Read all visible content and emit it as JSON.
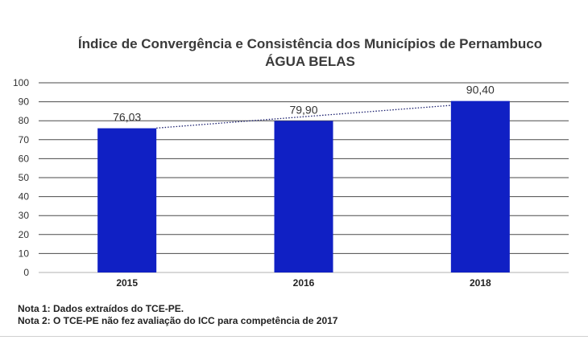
{
  "chart_data": {
    "type": "bar",
    "title": "Índice de Convergência e Consistência dos Municípios de Pernambuco",
    "subtitle": "ÁGUA BELAS",
    "categories": [
      "2015",
      "2016",
      "2018"
    ],
    "values": [
      76.03,
      79.9,
      90.4
    ],
    "data_labels": [
      "76,03",
      "79,90",
      "90,40"
    ],
    "ylim": [
      0,
      100
    ],
    "y_ticks": [
      "0",
      "10",
      "20",
      "30",
      "40",
      "50",
      "60",
      "70",
      "80",
      "90",
      "100"
    ],
    "grid": true,
    "trendline": "linear, dotted",
    "bar_color": "#1020c4",
    "trend_color": "#1a1f6e"
  },
  "notes": [
    "Nota 1: Dados extraídos do TCE-PE.",
    "Nota 2: O TCE-PE não fez avaliação do ICC para competência de 2017"
  ]
}
